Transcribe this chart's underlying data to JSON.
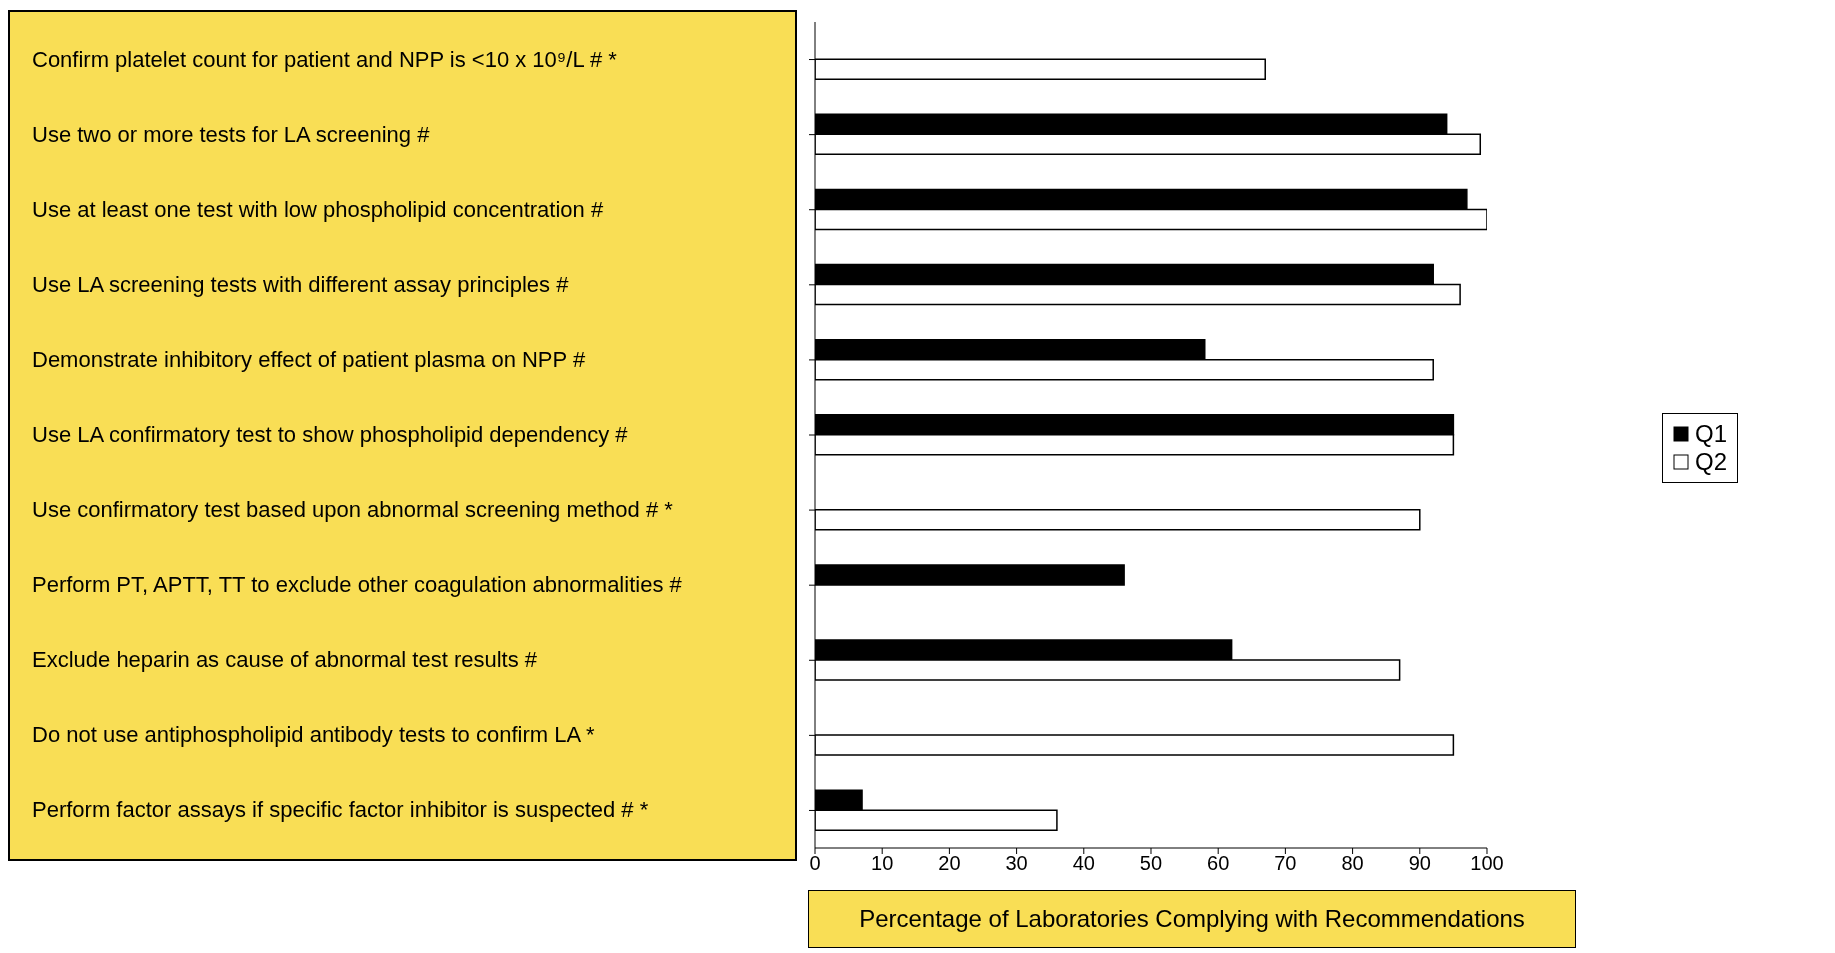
{
  "chart_data": {
    "type": "bar",
    "orientation": "horizontal",
    "categories": [
      "Confirm platelet count for patient and NPP is <10 x 10⁹/L   # *",
      "Use two or more tests for LA screening   #",
      "Use at least one test with low phospholipid concentration   #",
      "Use LA screening tests with different assay principles   #",
      "Demonstrate inhibitory effect of patient plasma on NPP   #",
      "Use LA confirmatory test to show phospholipid dependency   #",
      "Use confirmatory test based upon abnormal screening method   # *",
      "Perform PT, APTT, TT to exclude other coagulation abnormalities   #",
      "Exclude heparin as cause of abnormal test results   #",
      "Do not use antiphospholipid antibody tests to confirm LA   *",
      "Perform factor assays if specific factor inhibitor is suspected   # *"
    ],
    "series": [
      {
        "name": "Q1",
        "color": "#000000",
        "values": [
          null,
          94,
          97,
          92,
          58,
          95,
          null,
          46,
          62,
          null,
          7
        ]
      },
      {
        "name": "Q2",
        "color": "#ffffff",
        "values": [
          67,
          99,
          100,
          96,
          92,
          95,
          90,
          null,
          87,
          95,
          36
        ]
      }
    ],
    "xlabel": "Percentage of Laboratories Complying with Recommendations",
    "xlim": [
      0,
      100
    ],
    "xticks": [
      0,
      10,
      20,
      30,
      40,
      50,
      60,
      70,
      80,
      90,
      100
    ],
    "grid": false,
    "legend": "right"
  }
}
